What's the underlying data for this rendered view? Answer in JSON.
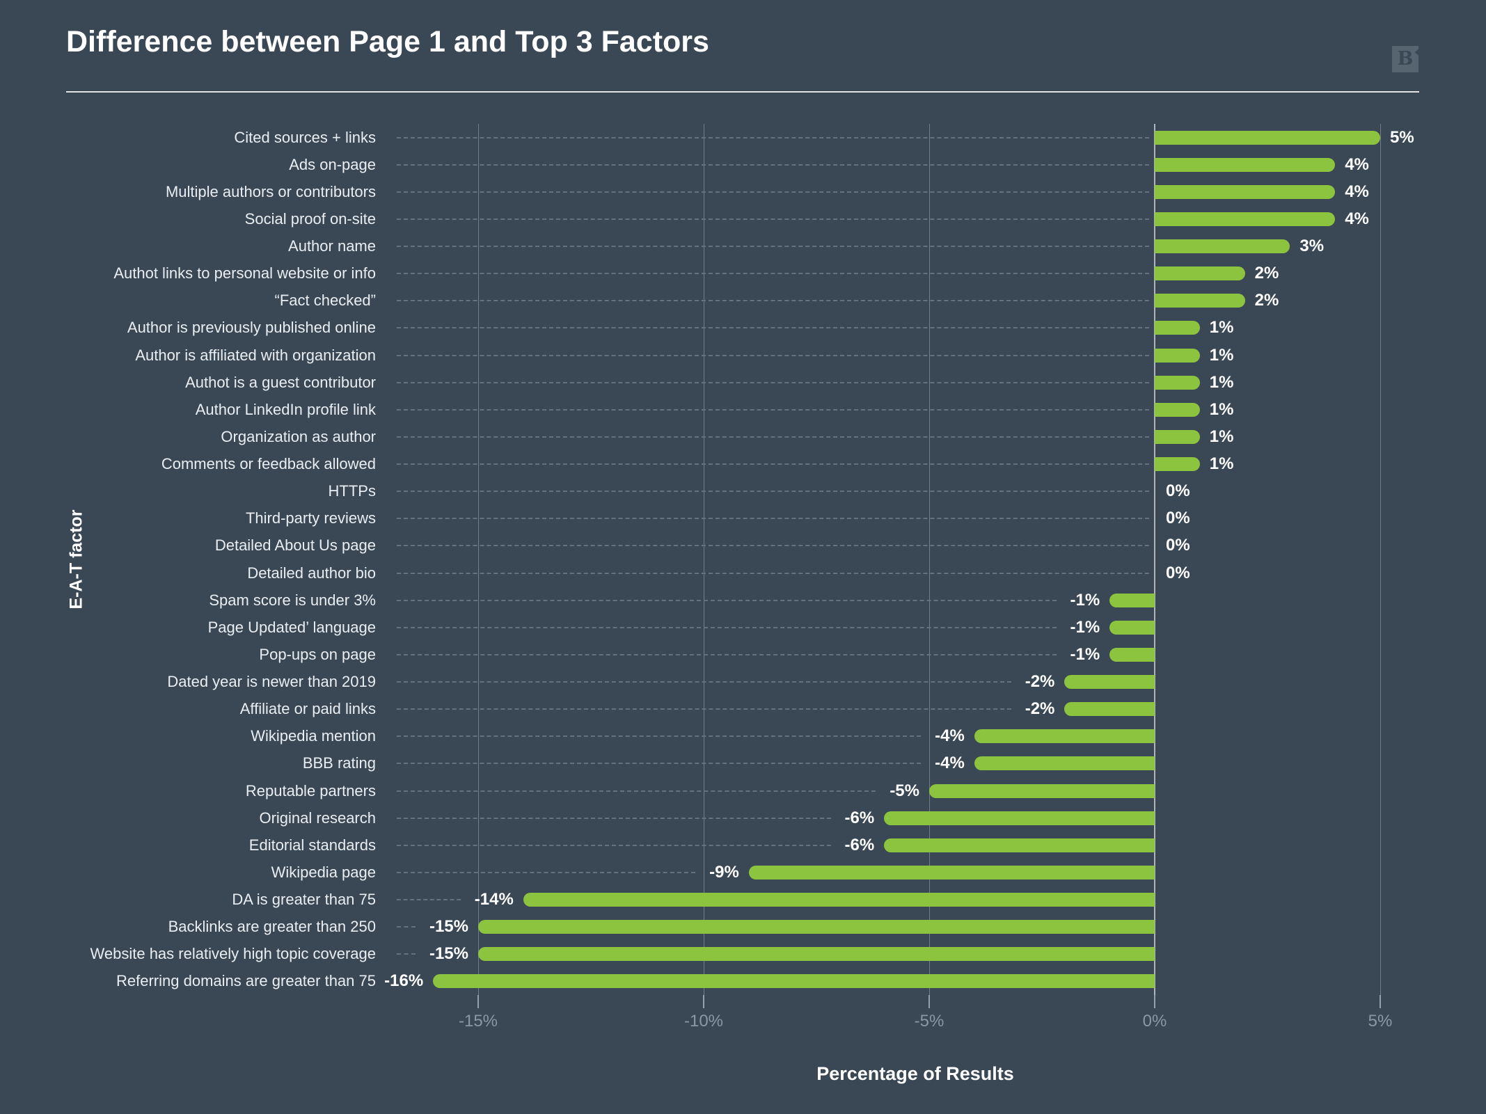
{
  "header": {
    "title": "Difference between Page 1 and Top 3 Factors",
    "logo_letter": "B"
  },
  "chart_data": {
    "type": "bar",
    "orientation": "horizontal",
    "title": "Difference between Page 1 and Top 3 Factors",
    "xlabel": "Percentage of Results",
    "ylabel": "E-A-T factor",
    "xlim": [
      -17,
      6.3
    ],
    "x_ticks": [
      -15,
      -10,
      -5,
      0,
      5
    ],
    "x_tick_labels": [
      "-15%",
      "-10%",
      "-5%",
      "0%",
      "5%"
    ],
    "grid": true,
    "legend": false,
    "bar_color": "#8CC43F",
    "background_color": "#3A4754",
    "categories": [
      "Cited sources + links",
      "Ads on-page",
      "Multiple authors or contributors",
      "Social proof on-site",
      "Author name",
      "Authot links to personal website or info",
      "“Fact checked”",
      "Author is previously published online",
      "Author is affiliated with organization",
      "Authot is a guest contributor",
      "Author LinkedIn profile link",
      "Organization as author",
      "Comments or feedback allowed",
      "HTTPs",
      "Third-party reviews",
      "Detailed About Us page",
      "Detailed author bio",
      "Spam score is under 3%",
      "Page Updated’ language",
      "Pop-ups on page",
      "Dated year is newer than 2019",
      "Affiliate or paid links",
      "Wikipedia mention",
      "BBB rating",
      "Reputable partners",
      "Original research",
      "Editorial standards",
      "Wikipedia page",
      "DA is greater than 75",
      "Backlinks are greater than 250",
      "Website has relatively high topic coverage",
      "Referring domains are greater than 75"
    ],
    "values": [
      5,
      4,
      4,
      4,
      3,
      2,
      2,
      1,
      1,
      1,
      1,
      1,
      1,
      0,
      0,
      0,
      0,
      -1,
      -1,
      -1,
      -2,
      -2,
      -4,
      -4,
      -5,
      -6,
      -6,
      -9,
      -14,
      -15,
      -15,
      -16
    ],
    "value_labels": [
      "5%",
      "4%",
      "4%",
      "4%",
      "3%",
      "2%",
      "2%",
      "1%",
      "1%",
      "1%",
      "1%",
      "1%",
      "1%",
      "0%",
      "0%",
      "0%",
      "0%",
      "-1%",
      "-1%",
      "-1%",
      "-2%",
      "-2%",
      "-4%",
      "-4%",
      "-5%",
      "-6%",
      "-6%",
      "-9%",
      "-14%",
      "-15%",
      "-15%",
      "-16%"
    ]
  }
}
